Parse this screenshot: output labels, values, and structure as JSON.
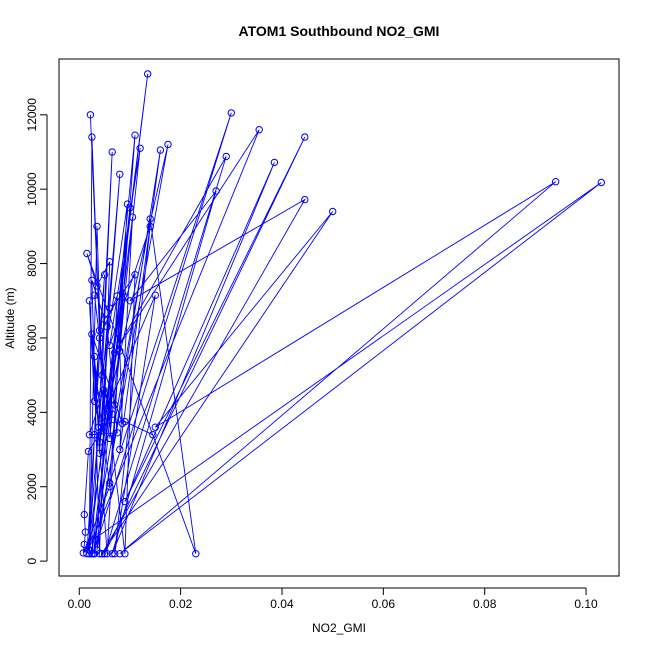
{
  "chart_data": {
    "type": "line",
    "title": "ATOM1 Southbound NO2_GMI",
    "xlabel": "NO2_GMI",
    "ylabel": "Altitude (m)",
    "xlim": [
      -0.004,
      0.1065
    ],
    "ylim": [
      -400,
      13500
    ],
    "xticks": [
      0.0,
      0.02,
      0.04,
      0.06,
      0.08,
      0.1
    ],
    "xtick_labels": [
      "0.00",
      "0.02",
      "0.04",
      "0.06",
      "0.08",
      "0.10"
    ],
    "yticks": [
      0,
      2000,
      4000,
      6000,
      8000,
      10000,
      12000
    ],
    "ytick_labels": [
      "0",
      "2000",
      "4000",
      "6000",
      "8000",
      "10000",
      "12000"
    ],
    "color": "#0000ff",
    "series": [
      {
        "points": [
          [
            0.0022,
            12000
          ],
          [
            0.004,
            6200
          ],
          [
            0.003,
            3400
          ],
          [
            0.002,
            200
          ],
          [
            0.0025,
            11400
          ],
          [
            0.0045,
            4500
          ],
          [
            0.0035,
            9000
          ],
          [
            0.002,
            300
          ],
          [
            0.0135,
            13100
          ],
          [
            0.005,
            3900
          ],
          [
            0.0085,
            7200
          ],
          [
            0.0028,
            200
          ],
          [
            0.03,
            12050
          ],
          [
            0.006,
            2100
          ],
          [
            0.011,
            11450
          ],
          [
            0.003,
            200
          ],
          [
            0.0175,
            11200
          ],
          [
            0.004,
            3200
          ],
          [
            0.008,
            10400
          ],
          [
            0.0018,
            300
          ],
          [
            0.0355,
            11600
          ],
          [
            0.007,
            5600
          ],
          [
            0.029,
            10880
          ],
          [
            0.005,
            200
          ],
          [
            0.0445,
            11400
          ],
          [
            0.009,
            1600
          ],
          [
            0.0385,
            10720
          ],
          [
            0.0065,
            200
          ],
          [
            0.027,
            9950
          ],
          [
            0.01,
            7000
          ],
          [
            0.0445,
            9720
          ],
          [
            0.0045,
            200
          ],
          [
            0.05,
            9400
          ],
          [
            0.015,
            3600
          ],
          [
            0.094,
            10200
          ],
          [
            0.008,
            200
          ],
          [
            0.103,
            10180
          ],
          [
            0.003,
            600
          ],
          [
            0.014,
            9200
          ],
          [
            0.023,
            200
          ],
          [
            0.0015,
            8270
          ],
          [
            0.0035,
            7400
          ],
          [
            0.006,
            8050
          ],
          [
            0.004,
            200
          ],
          [
            0.0025,
            7550
          ],
          [
            0.005,
            6500
          ],
          [
            0.011,
            7700
          ],
          [
            0.009,
            200
          ],
          [
            0.003,
            7150
          ],
          [
            0.004,
            6000
          ],
          [
            0.0075,
            7130
          ],
          [
            0.006,
            3300
          ],
          [
            0.012,
            11100
          ],
          [
            0.006,
            5800
          ],
          [
            0.014,
            9000
          ],
          [
            0.007,
            200
          ],
          [
            0.015,
            7150
          ],
          [
            0.0055,
            4100
          ],
          [
            0.01,
            9500
          ],
          [
            0.0035,
            300
          ],
          [
            0.016,
            11050
          ],
          [
            0.008,
            3000
          ],
          [
            0.0105,
            9250
          ],
          [
            0.0025,
            200
          ],
          [
            0.0065,
            11000
          ],
          [
            0.0045,
            5000
          ],
          [
            0.0095,
            9600
          ],
          [
            0.0055,
            200
          ],
          [
            0.002,
            7000
          ],
          [
            0.003,
            4300
          ],
          [
            0.005,
            7700
          ],
          [
            0.0015,
            200
          ],
          [
            0.009,
            7100
          ],
          [
            0.007,
            4200
          ],
          [
            0.008,
            5650
          ],
          [
            0.0085,
            3700
          ],
          [
            0.0025,
            6100
          ],
          [
            0.0045,
            3500
          ],
          [
            0.006,
            6800
          ],
          [
            0.004,
            2900
          ],
          [
            0.003,
            5500
          ],
          [
            0.0038,
            3600
          ],
          [
            0.0055,
            6300
          ],
          [
            0.0075,
            3450
          ],
          [
            0.002,
            3400
          ],
          [
            0.0048,
            4600
          ],
          [
            0.0065,
            3950
          ],
          [
            0.0018,
            2950
          ],
          [
            0.001,
            1250
          ],
          [
            0.0012,
            780
          ],
          [
            0.001,
            450
          ],
          [
            0.0008,
            220
          ],
          [
            0.006,
            2000
          ],
          [
            0.0045,
            3700
          ],
          [
            0.009,
            3750
          ],
          [
            0.0145,
            3400
          ]
        ]
      }
    ]
  }
}
